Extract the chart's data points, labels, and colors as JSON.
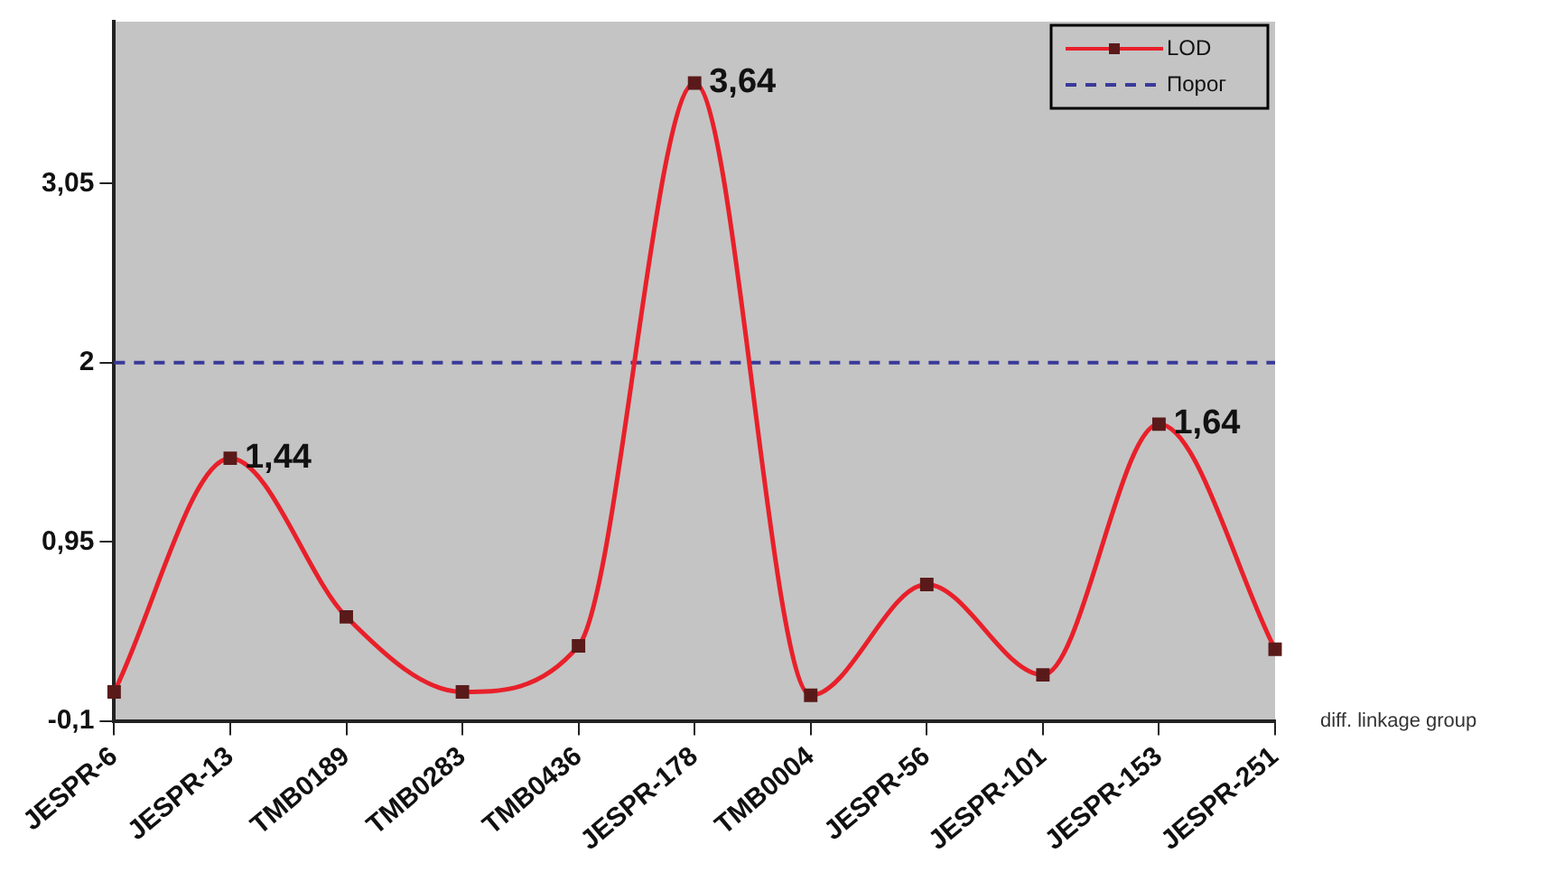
{
  "chart_data": {
    "type": "line",
    "xlabel": "diff. linkage group",
    "categories": [
      "JESPR-6",
      "JESPR-13",
      "TMB0189",
      "TMB0283",
      "TMB0436",
      "JESPR-178",
      "TMB0004",
      "JESPR-56",
      "JESPR-101",
      "JESPR-153",
      "JESPR-251"
    ],
    "series": [
      {
        "name": "LOD",
        "color": "#e8202a",
        "values": [
          0.07,
          1.44,
          0.51,
          0.07,
          0.34,
          3.64,
          0.05,
          0.7,
          0.17,
          1.64,
          0.32
        ],
        "value_labels": [
          null,
          "1,44",
          null,
          null,
          null,
          "3,64",
          null,
          null,
          null,
          "1,64",
          null
        ]
      }
    ],
    "ref_lines": [
      {
        "axis": "y",
        "value": 2,
        "label": "Порог",
        "color": "#3a3a9a",
        "line_style": "dashed"
      }
    ],
    "ylim": [
      -0.1,
      4.0
    ],
    "yticks": [
      {
        "value": -0.1,
        "label": "-0,1"
      },
      {
        "value": 0.95,
        "label": "0,95"
      },
      {
        "value": 2,
        "label": "2"
      },
      {
        "value": 3.05,
        "label": "3,05"
      }
    ],
    "grid": false,
    "legend": "top right",
    "marker": "square",
    "line_style": "solid"
  }
}
